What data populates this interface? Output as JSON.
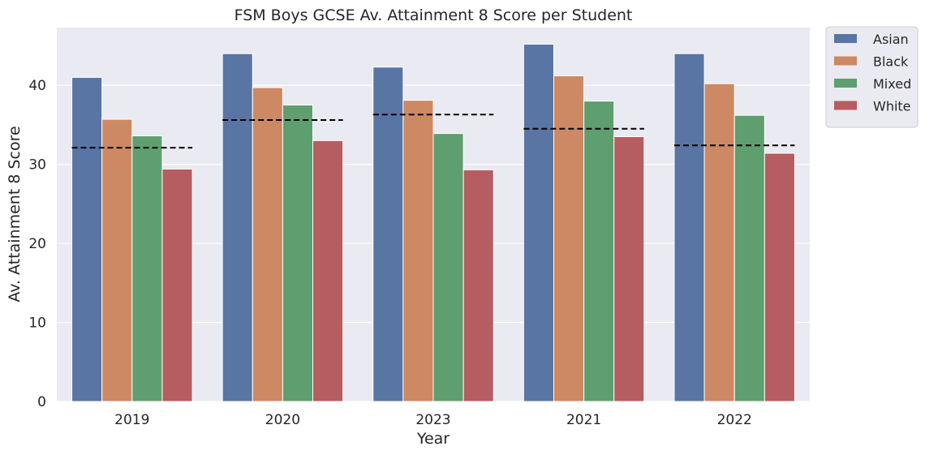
{
  "chart_data": {
    "type": "bar",
    "title": "FSM Boys GCSE Av. Attainment 8 Score per Student",
    "xlabel": "Year",
    "ylabel": "Av. Attainment 8 Score",
    "categories": [
      "2019",
      "2020",
      "2023",
      "2021",
      "2022"
    ],
    "series": [
      {
        "name": "Asian",
        "color": "#5975a4",
        "values": [
          41.0,
          44.0,
          42.3,
          45.2,
          44.0
        ]
      },
      {
        "name": "Black",
        "color": "#cc8963",
        "values": [
          35.7,
          39.7,
          38.1,
          41.2,
          40.2
        ]
      },
      {
        "name": "Mixed",
        "color": "#5f9e6e",
        "values": [
          33.6,
          37.5,
          33.9,
          38.0,
          36.2
        ]
      },
      {
        "name": "White",
        "color": "#b55d60",
        "values": [
          29.4,
          33.0,
          29.3,
          33.5,
          31.4
        ]
      }
    ],
    "reference_lines": {
      "style": "dashed",
      "color": "#000000",
      "values": [
        32.1,
        35.6,
        36.3,
        34.5,
        32.4
      ]
    },
    "ylim": [
      0,
      47.3
    ],
    "yticks": [
      0,
      10,
      20,
      30,
      40
    ],
    "grid": true,
    "legend_position": "outside-top-right",
    "background_color": "#eaeaf2",
    "grid_color": "#ffffff"
  }
}
